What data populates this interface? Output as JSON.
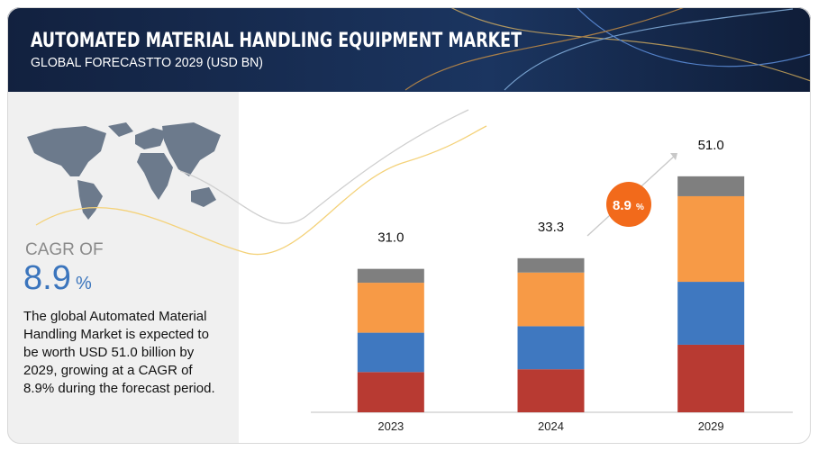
{
  "chart_data": {
    "type": "stacked_bar",
    "title": "AUTOMATED MATERIAL HANDLING EQUIPMENT MARKET",
    "subtitle": "GLOBAL FORECASTTO 2029 (USD BN)",
    "categories": [
      "2023",
      "2024",
      "2029"
    ],
    "series": [
      {
        "color": "#b83a32",
        "values": [
          8.7,
          9.3,
          14.6
        ]
      },
      {
        "color": "#3f78c0",
        "values": [
          8.5,
          9.3,
          13.6
        ]
      },
      {
        "color": "#f79a46",
        "values": [
          10.8,
          11.6,
          18.5
        ]
      },
      {
        "color": "#7f7f7f",
        "values": [
          3.0,
          3.1,
          4.3
        ]
      }
    ],
    "total_values": [
      31.0,
      33.3,
      51.0
    ],
    "total_labels": [
      "31.0",
      "33.3",
      "51.0"
    ],
    "ylim": [
      0,
      60
    ],
    "cagr_label": "CAGR OF",
    "cagr_value": "8.9",
    "cagr_unit": "%",
    "badge_value": "8.9",
    "badge_unit": "%",
    "description": "The global Automated Material Handling  Market is expected to be worth USD 51.0 billion by 2029, growing at a CAGR of 8.9% during the forecast period."
  }
}
